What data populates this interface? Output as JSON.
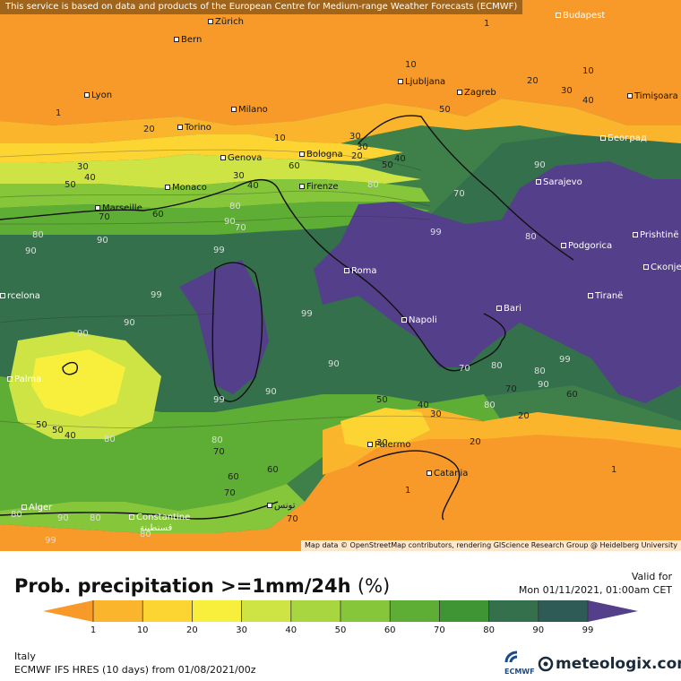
{
  "map": {
    "disclaimer": "This service is based on data and products of the European Centre for Medium-range Weather Forecasts (ECMWF)",
    "attribution": "Map data © OpenStreetMap contributors, rendering GIScience Research Group @ Heidelberg University",
    "cities": [
      {
        "id": "budapest",
        "name": "Budapest"
      },
      {
        "id": "bern",
        "name": "Bern"
      },
      {
        "id": "zurich",
        "name": "Zürich"
      },
      {
        "id": "lyon",
        "name": "Lyon"
      },
      {
        "id": "ljubljana",
        "name": "Ljubljana"
      },
      {
        "id": "zagreb",
        "name": "Zagreb"
      },
      {
        "id": "timisoara",
        "name": "Timişoara"
      },
      {
        "id": "milano",
        "name": "Milano"
      },
      {
        "id": "torino",
        "name": "Torino"
      },
      {
        "id": "beograd",
        "name": "Београд"
      },
      {
        "id": "genova",
        "name": "Genova"
      },
      {
        "id": "bologna",
        "name": "Bologna"
      },
      {
        "id": "monaco",
        "name": "Monaco"
      },
      {
        "id": "marseille",
        "name": "Marseille"
      },
      {
        "id": "firenze",
        "name": "Firenze"
      },
      {
        "id": "sarajevo",
        "name": "Sarajevo"
      },
      {
        "id": "podgorica",
        "name": "Podgorica"
      },
      {
        "id": "prishtine",
        "name": "Prishtinë"
      },
      {
        "id": "skopje",
        "name": "Скопје"
      },
      {
        "id": "roma",
        "name": "Roma"
      },
      {
        "id": "barcelona",
        "name": "rcelona"
      },
      {
        "id": "tirane",
        "name": "Tiranë"
      },
      {
        "id": "napoli",
        "name": "Napoli"
      },
      {
        "id": "bari",
        "name": "Bari"
      },
      {
        "id": "palma",
        "name": "Palma"
      },
      {
        "id": "palermo",
        "name": "Palermo"
      },
      {
        "id": "catania",
        "name": "Catania"
      },
      {
        "id": "alger",
        "name": "Alger"
      },
      {
        "id": "constantine",
        "name": "Constantine"
      },
      {
        "id": "constantine_ar",
        "name": "قسنطينة"
      },
      {
        "id": "tunis",
        "name": "تونس"
      }
    ],
    "contour_labels": [
      "1",
      "1",
      "10",
      "20",
      "30",
      "40",
      "10",
      "50",
      "20",
      "30",
      "40",
      "10",
      "30",
      "60",
      "20",
      "30",
      "40",
      "50",
      "70",
      "80",
      "90",
      "1",
      "30",
      "40",
      "50",
      "60",
      "70",
      "80",
      "90",
      "70",
      "80",
      "90",
      "99",
      "80",
      "99",
      "99",
      "90",
      "99",
      "90",
      "99",
      "99",
      "80",
      "90",
      "90",
      "90",
      "80",
      "70",
      "60",
      "50",
      "40",
      "30",
      "20",
      "80",
      "50",
      "40",
      "30",
      "20",
      "80",
      "70",
      "60",
      "50",
      "80",
      "90",
      "99",
      "60",
      "70",
      "80",
      "80",
      "70",
      "1",
      "90",
      "70",
      "80"
    ]
  },
  "legend": {
    "title": "Prob. precipitation >=1mm/24h",
    "unit": "(%)",
    "valid_label": "Valid for",
    "valid_time": "Mon 01/11/2021, 01:00am CET",
    "ticks": [
      "1",
      "10",
      "20",
      "30",
      "40",
      "50",
      "60",
      "70",
      "80",
      "90",
      "99"
    ],
    "colors": [
      "#f79a2a",
      "#fbb52c",
      "#fcd533",
      "#f7ef3c",
      "#cde444",
      "#a7d640",
      "#85c63a",
      "#5ead35",
      "#3f9433",
      "#34704c",
      "#2f5b56",
      "#54408a"
    ]
  },
  "footer": {
    "region": "Italy",
    "model": "ECMWF IFS HRES (10 days) from 01/08/2021/00z",
    "ecmwf_logo": "ECMWF",
    "brand": "meteologix.com"
  }
}
